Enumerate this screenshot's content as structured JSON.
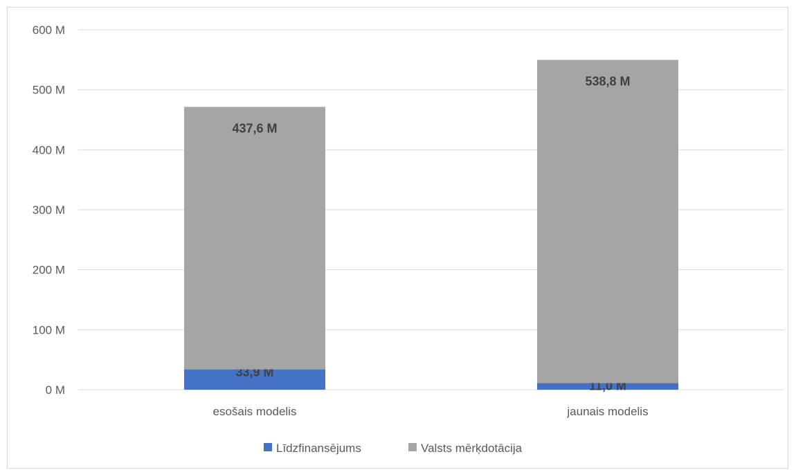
{
  "chart_data": {
    "type": "bar",
    "stacked": true,
    "categories": [
      "esošais modelis",
      "jaunais modelis"
    ],
    "series": [
      {
        "name": "Līdzfinansējums",
        "values": [
          33.9,
          11.0
        ],
        "labels": [
          "33,9 M",
          "11,0 M"
        ],
        "color": "#4472c4"
      },
      {
        "name": "Valsts mērķdotācija",
        "values": [
          437.6,
          538.8
        ],
        "labels": [
          "437,6 M",
          "538,8 M"
        ],
        "color": "#a5a5a5"
      }
    ],
    "y_ticks": [
      "0 M",
      "100 M",
      "200 M",
      "300 M",
      "400 M",
      "500 M",
      "600 M"
    ],
    "ylim": [
      0,
      600
    ],
    "grid": true,
    "legend_position": "bottom",
    "gridline_color": "#d9d9d9"
  }
}
